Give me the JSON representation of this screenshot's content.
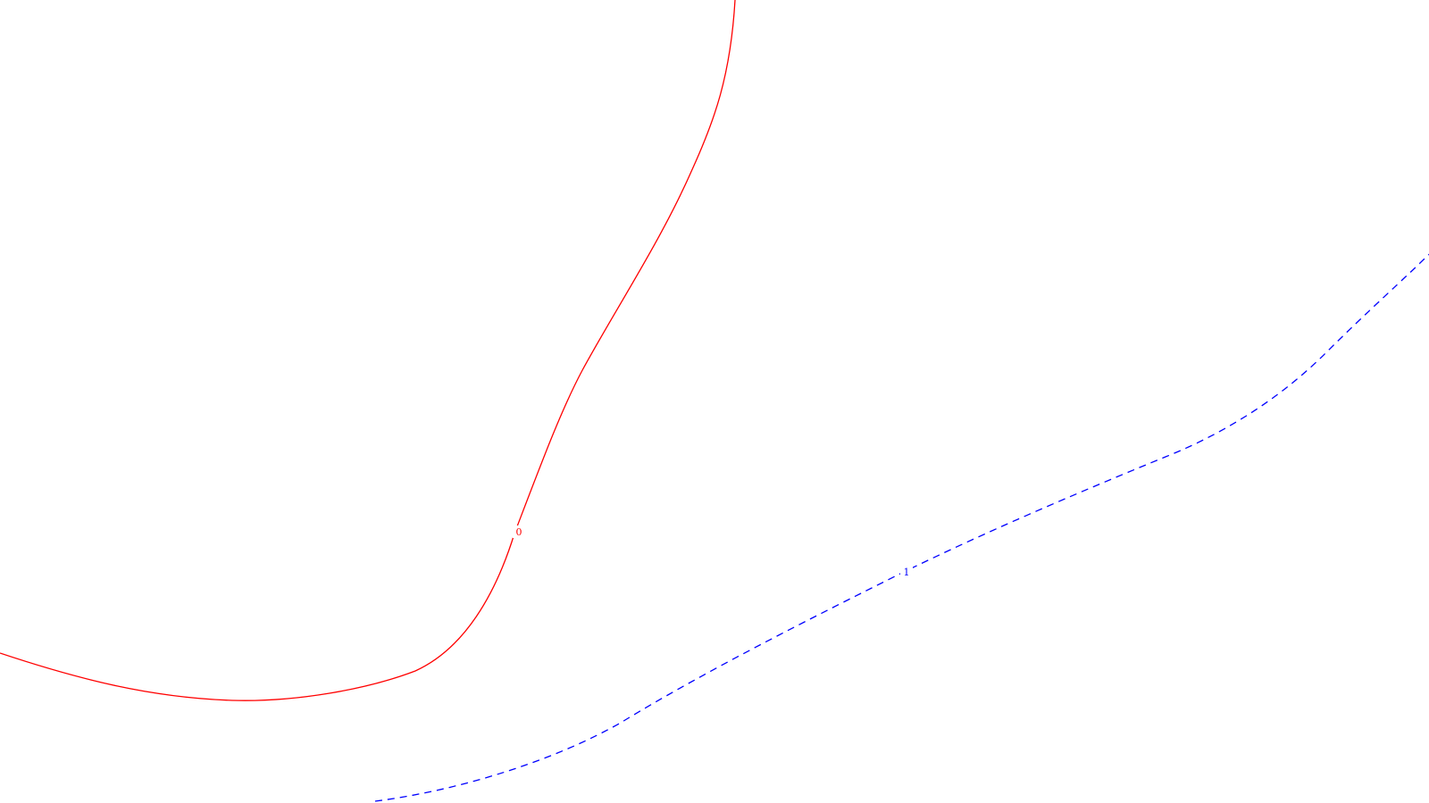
{
  "contours": [
    {
      "label": "0",
      "color": "#ff0000",
      "dashed": false
    },
    {
      "label": "1",
      "color": "#0000ff",
      "dashed": true
    }
  ]
}
